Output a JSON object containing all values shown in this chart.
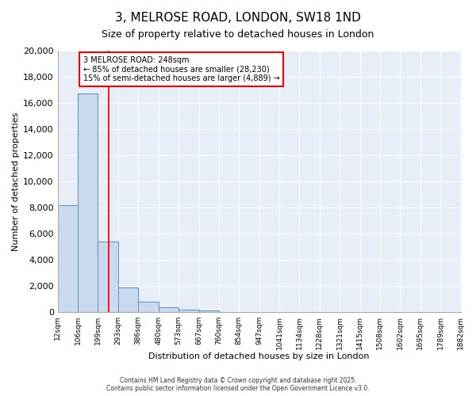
{
  "title": "3, MELROSE ROAD, LONDON, SW18 1ND",
  "subtitle": "Size of property relative to detached houses in London",
  "xlabel": "Distribution of detached houses by size in London",
  "ylabel": "Number of detached properties",
  "bin_edges": [
    12,
    106,
    199,
    293,
    386,
    480,
    573,
    667,
    760,
    854,
    947,
    1041,
    1134,
    1228,
    1321,
    1415,
    1508,
    1602,
    1695,
    1789,
    1882
  ],
  "bar_heights": [
    8200,
    16700,
    5400,
    1900,
    800,
    350,
    200,
    100,
    0,
    0,
    0,
    0,
    0,
    0,
    0,
    0,
    0,
    0,
    0,
    0
  ],
  "bar_color": "#c9d9ee",
  "bar_edge_color": "#5b8ec4",
  "red_line_x": 248,
  "annotation_title": "3 MELROSE ROAD: 248sqm",
  "annotation_line1": "← 85% of detached houses are smaller (28,230)",
  "annotation_line2": "15% of semi-detached houses are larger (4,889) →",
  "ylim": [
    0,
    20000
  ],
  "yticks": [
    0,
    2000,
    4000,
    6000,
    8000,
    10000,
    12000,
    14000,
    16000,
    18000,
    20000
  ],
  "background_color": "#ffffff",
  "grid_color": "#dce6f5",
  "footer_line1": "Contains HM Land Registry data © Crown copyright and database right 2025.",
  "footer_line2": "Contains public sector information licensed under the Open Government Licence v3.0."
}
